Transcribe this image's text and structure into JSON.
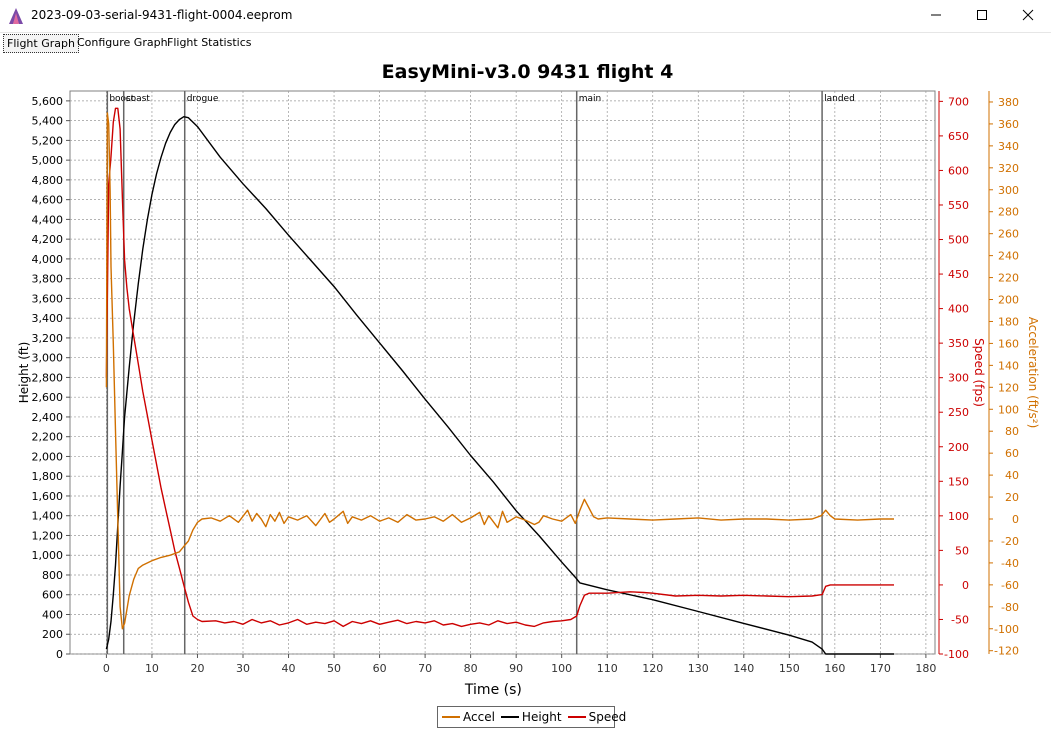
{
  "window": {
    "title": "2023-09-03-serial-9431-flight-0004.eeprom",
    "icon": "altus-metrum-icon",
    "controls": [
      "minimize",
      "maximize",
      "close"
    ]
  },
  "tabs": [
    {
      "label": "Flight Graph",
      "active": true
    },
    {
      "label": "Configure Graph",
      "active": false
    },
    {
      "label": "Flight Statistics",
      "active": false
    }
  ],
  "chart_data": {
    "type": "line",
    "title": "EasyMini-v3.0 9431 flight 4",
    "xlabel": "Time (s)",
    "xlim": [
      -8,
      182
    ],
    "xticks": [
      0,
      10,
      20,
      30,
      40,
      50,
      60,
      70,
      80,
      90,
      100,
      110,
      120,
      130,
      140,
      150,
      160,
      170,
      180
    ],
    "axes": {
      "height": {
        "label": "Height (ft)",
        "side": "left",
        "min": 0,
        "max": 5700,
        "ticks": [
          0,
          200,
          400,
          600,
          800,
          1000,
          1200,
          1400,
          1600,
          1800,
          2000,
          2200,
          2400,
          2600,
          2800,
          3000,
          3200,
          3400,
          3600,
          3800,
          4000,
          4200,
          4400,
          4600,
          4800,
          5000,
          5200,
          5400,
          5600
        ],
        "color": "#000000"
      },
      "speed": {
        "label": "Speed (fps)",
        "side": "right",
        "min": -100,
        "max": 715,
        "ticks": [
          -100,
          -50,
          0,
          50,
          100,
          150,
          200,
          250,
          300,
          350,
          400,
          450,
          500,
          550,
          600,
          650,
          700
        ],
        "color": "#cc0000"
      },
      "accel": {
        "label": "Acceleration (ft/s²)",
        "side": "right",
        "min": -123,
        "max": 390,
        "ticks": [
          -120,
          -100,
          -80,
          -60,
          -40,
          -20,
          0,
          20,
          40,
          60,
          80,
          100,
          120,
          140,
          160,
          180,
          200,
          220,
          240,
          260,
          280,
          300,
          320,
          340,
          360,
          380
        ],
        "color": "#d07000"
      }
    },
    "events": [
      {
        "label": "boost",
        "x": 0.2
      },
      {
        "label": "coast",
        "x": 3.8
      },
      {
        "label": "drogue",
        "x": 17.2
      },
      {
        "label": "main",
        "x": 103.3
      },
      {
        "label": "landed",
        "x": 157.2
      }
    ],
    "series": [
      {
        "name": "Height",
        "axis": "height",
        "color": "#000000",
        "points": [
          [
            0,
            50
          ],
          [
            0.5,
            150
          ],
          [
            1,
            330
          ],
          [
            1.5,
            600
          ],
          [
            2,
            900
          ],
          [
            2.5,
            1300
          ],
          [
            3,
            1700
          ],
          [
            3.5,
            2050
          ],
          [
            4,
            2400
          ],
          [
            5,
            2900
          ],
          [
            6,
            3350
          ],
          [
            7,
            3750
          ],
          [
            8,
            4100
          ],
          [
            9,
            4400
          ],
          [
            10,
            4650
          ],
          [
            11,
            4860
          ],
          [
            12,
            5030
          ],
          [
            13,
            5170
          ],
          [
            14,
            5280
          ],
          [
            15,
            5360
          ],
          [
            16,
            5410
          ],
          [
            17,
            5440
          ],
          [
            18,
            5430
          ],
          [
            20,
            5340
          ],
          [
            25,
            5030
          ],
          [
            30,
            4760
          ],
          [
            35,
            4510
          ],
          [
            40,
            4240
          ],
          [
            45,
            3980
          ],
          [
            50,
            3720
          ],
          [
            55,
            3430
          ],
          [
            60,
            3150
          ],
          [
            65,
            2870
          ],
          [
            70,
            2580
          ],
          [
            75,
            2300
          ],
          [
            80,
            2010
          ],
          [
            85,
            1740
          ],
          [
            90,
            1450
          ],
          [
            95,
            1200
          ],
          [
            100,
            930
          ],
          [
            103.3,
            760
          ],
          [
            104,
            720
          ],
          [
            110,
            650
          ],
          [
            120,
            550
          ],
          [
            130,
            430
          ],
          [
            140,
            310
          ],
          [
            150,
            190
          ],
          [
            155,
            120
          ],
          [
            157.2,
            50
          ],
          [
            158,
            0
          ],
          [
            173,
            0
          ]
        ]
      },
      {
        "name": "Speed",
        "axis": "speed",
        "color": "#cc0000",
        "points": [
          [
            0,
            300
          ],
          [
            0.5,
            580
          ],
          [
            1,
            620
          ],
          [
            1.5,
            670
          ],
          [
            2,
            690
          ],
          [
            2.5,
            690
          ],
          [
            3,
            660
          ],
          [
            3.5,
            560
          ],
          [
            4,
            470
          ],
          [
            4.5,
            430
          ],
          [
            5,
            400
          ],
          [
            6,
            360
          ],
          [
            7,
            320
          ],
          [
            8,
            280
          ],
          [
            9,
            245
          ],
          [
            10,
            210
          ],
          [
            11,
            175
          ],
          [
            12,
            140
          ],
          [
            13,
            110
          ],
          [
            14,
            80
          ],
          [
            15,
            50
          ],
          [
            16,
            25
          ],
          [
            17,
            0
          ],
          [
            18,
            -25
          ],
          [
            19,
            -45
          ],
          [
            20,
            -50
          ],
          [
            21,
            -53
          ],
          [
            24,
            -52
          ],
          [
            26,
            -55
          ],
          [
            28,
            -53
          ],
          [
            30,
            -57
          ],
          [
            32,
            -50
          ],
          [
            34,
            -55
          ],
          [
            36,
            -52
          ],
          [
            38,
            -58
          ],
          [
            40,
            -55
          ],
          [
            42,
            -50
          ],
          [
            44,
            -57
          ],
          [
            46,
            -54
          ],
          [
            48,
            -56
          ],
          [
            50,
            -52
          ],
          [
            52,
            -60
          ],
          [
            54,
            -53
          ],
          [
            56,
            -56
          ],
          [
            58,
            -52
          ],
          [
            60,
            -57
          ],
          [
            62,
            -54
          ],
          [
            64,
            -51
          ],
          [
            66,
            -56
          ],
          [
            68,
            -53
          ],
          [
            70,
            -55
          ],
          [
            72,
            -52
          ],
          [
            74,
            -58
          ],
          [
            76,
            -56
          ],
          [
            78,
            -60
          ],
          [
            80,
            -57
          ],
          [
            82,
            -55
          ],
          [
            84,
            -58
          ],
          [
            86,
            -52
          ],
          [
            88,
            -56
          ],
          [
            90,
            -54
          ],
          [
            92,
            -58
          ],
          [
            94,
            -60
          ],
          [
            96,
            -55
          ],
          [
            98,
            -53
          ],
          [
            100,
            -52
          ],
          [
            102,
            -50
          ],
          [
            103.3,
            -45
          ],
          [
            104,
            -30
          ],
          [
            105,
            -15
          ],
          [
            106,
            -12
          ],
          [
            110,
            -12
          ],
          [
            115,
            -10
          ],
          [
            118,
            -11
          ],
          [
            120,
            -12
          ],
          [
            125,
            -16
          ],
          [
            130,
            -15
          ],
          [
            135,
            -16
          ],
          [
            140,
            -15
          ],
          [
            145,
            -16
          ],
          [
            150,
            -17
          ],
          [
            155,
            -16
          ],
          [
            157.2,
            -14
          ],
          [
            158,
            -2
          ],
          [
            159,
            0
          ],
          [
            173,
            0
          ]
        ]
      },
      {
        "name": "Accel",
        "axis": "accel",
        "color": "#d07000",
        "points": [
          [
            0,
            120
          ],
          [
            0.2,
            370
          ],
          [
            0.5,
            360
          ],
          [
            0.8,
            300
          ],
          [
            1,
            230
          ],
          [
            1.5,
            160
          ],
          [
            2,
            80
          ],
          [
            2.5,
            0
          ],
          [
            3,
            -80
          ],
          [
            3.5,
            -100
          ],
          [
            4,
            -95
          ],
          [
            5,
            -70
          ],
          [
            6,
            -55
          ],
          [
            7,
            -45
          ],
          [
            8,
            -42
          ],
          [
            10,
            -38
          ],
          [
            12,
            -35
          ],
          [
            14,
            -33
          ],
          [
            16,
            -30
          ],
          [
            17,
            -25
          ],
          [
            18,
            -20
          ],
          [
            19,
            -10
          ],
          [
            20,
            -3
          ],
          [
            21,
            0
          ],
          [
            23,
            1
          ],
          [
            25,
            -2
          ],
          [
            27,
            3
          ],
          [
            29,
            -3
          ],
          [
            31,
            8
          ],
          [
            32,
            -2
          ],
          [
            33,
            5
          ],
          [
            34,
            0
          ],
          [
            35,
            -7
          ],
          [
            36,
            4
          ],
          [
            37,
            -2
          ],
          [
            38,
            6
          ],
          [
            39,
            -4
          ],
          [
            40,
            2
          ],
          [
            42,
            -1
          ],
          [
            44,
            3
          ],
          [
            46,
            -6
          ],
          [
            48,
            5
          ],
          [
            49,
            -3
          ],
          [
            50,
            0
          ],
          [
            52,
            7
          ],
          [
            53,
            -4
          ],
          [
            54,
            2
          ],
          [
            56,
            -1
          ],
          [
            58,
            3
          ],
          [
            60,
            -2
          ],
          [
            62,
            1
          ],
          [
            64,
            -3
          ],
          [
            66,
            4
          ],
          [
            68,
            -1
          ],
          [
            70,
            0
          ],
          [
            72,
            2
          ],
          [
            74,
            -2
          ],
          [
            76,
            4
          ],
          [
            78,
            -3
          ],
          [
            80,
            1
          ],
          [
            82,
            6
          ],
          [
            83,
            -5
          ],
          [
            84,
            3
          ],
          [
            86,
            -8
          ],
          [
            87,
            7
          ],
          [
            88,
            -3
          ],
          [
            90,
            2
          ],
          [
            92,
            -1
          ],
          [
            94,
            -5
          ],
          [
            95,
            -3
          ],
          [
            96,
            3
          ],
          [
            98,
            0
          ],
          [
            100,
            -2
          ],
          [
            102,
            4
          ],
          [
            103,
            -4
          ],
          [
            104,
            8
          ],
          [
            105,
            18
          ],
          [
            106,
            10
          ],
          [
            107,
            2
          ],
          [
            108,
            0
          ],
          [
            110,
            1
          ],
          [
            115,
            0
          ],
          [
            120,
            -1
          ],
          [
            125,
            0
          ],
          [
            130,
            1
          ],
          [
            135,
            -1
          ],
          [
            140,
            0
          ],
          [
            145,
            0
          ],
          [
            150,
            -1
          ],
          [
            155,
            0
          ],
          [
            157,
            3
          ],
          [
            158,
            8
          ],
          [
            159,
            3
          ],
          [
            160,
            0
          ],
          [
            165,
            -1
          ],
          [
            170,
            0
          ],
          [
            173,
            0
          ]
        ]
      }
    ],
    "legend": {
      "placement": "bottom-center",
      "items": [
        "Accel",
        "Height",
        "Speed"
      ]
    },
    "grid": true
  }
}
